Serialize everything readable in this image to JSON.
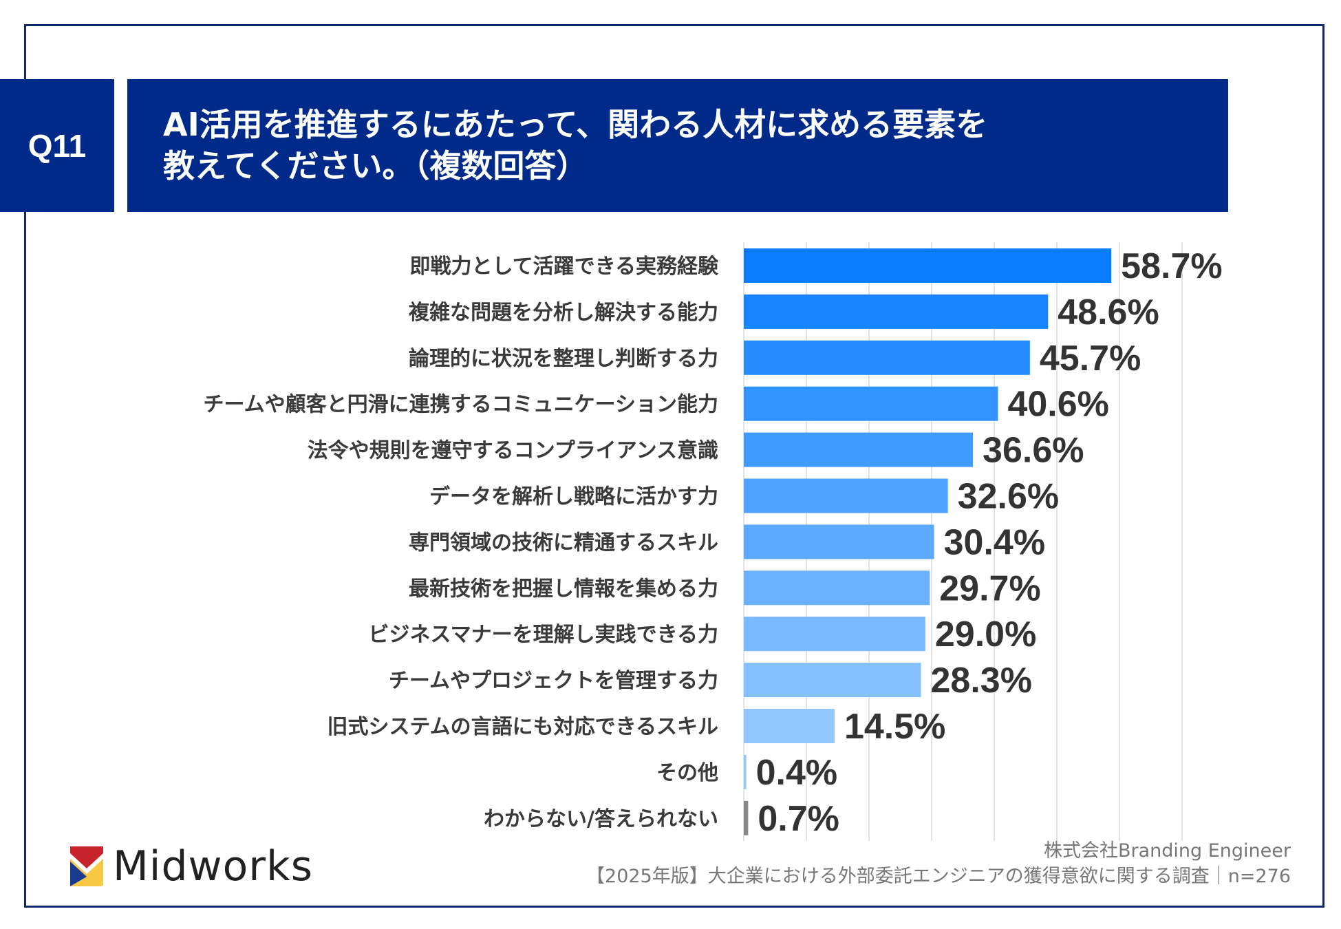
{
  "header": {
    "question_number": "Q11",
    "title_line1": "AI活用を推進するにあたって、関わる人材に求める要素を",
    "title_line2": "教えてください。（複数回答）"
  },
  "chart_data": {
    "type": "bar",
    "orientation": "horizontal",
    "categories": [
      "即戦力として活躍できる実務経験",
      "複雑な問題を分析し解決する能力",
      "論理的に状況を整理し判断する力",
      "チームや顧客と円滑に連携するコミュニケーション能力",
      "法令や規則を遵守するコンプライアンス意識",
      "データを解析し戦略に活かす力",
      "専門領域の技術に精通するスキル",
      "最新技術を把握し情報を集める力",
      "ビジネスマナーを理解し実践できる力",
      "チームやプロジェクトを管理する力",
      "旧式システムの言語にも対応できるスキル",
      "その他",
      "わからない/答えられない"
    ],
    "values": [
      58.7,
      48.6,
      45.7,
      40.6,
      36.6,
      32.6,
      30.4,
      29.7,
      29.0,
      28.3,
      14.5,
      0.4,
      0.7
    ],
    "value_labels": [
      "58.7%",
      "48.6%",
      "45.7%",
      "40.6%",
      "36.6%",
      "32.6%",
      "30.4%",
      "29.7%",
      "29.0%",
      "28.3%",
      "14.5%",
      "0.4%",
      "0.7%"
    ],
    "xlim": [
      0,
      70
    ],
    "grid": true,
    "unit": "%",
    "colors": {
      "bar_start": "#0a7cff",
      "bar_end": "#93c8ff",
      "na_bar": "#888888",
      "grid": "#d9d9d9"
    }
  },
  "footer": {
    "logo_text": "Midworks",
    "company": "株式会社Branding Engineer",
    "survey": "【2025年版】大企業における外部委託エンジニアの獲得意欲に関する調査｜n=276"
  },
  "colors": {
    "navy": "#002a8a",
    "frame": "#0d2a6b"
  }
}
